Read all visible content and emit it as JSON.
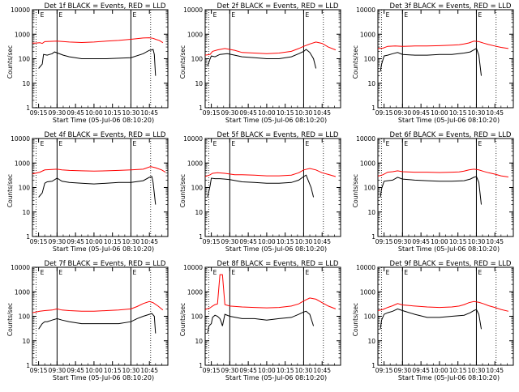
{
  "figure": {
    "xlabel": "Start Time (05-Jul-06 08:10:20)",
    "ylabel": "Counts/sec",
    "xtick_labels": [
      "09:15",
      "09:30",
      "09:45",
      "10:00",
      "10:15",
      "10:30",
      "10:45"
    ],
    "ytick_labels": [
      "1",
      "10",
      "100",
      "1000",
      "10000"
    ],
    "series_colors": {
      "events": "#000000",
      "lld": "#ff0000"
    }
  },
  "chart_data": [
    {
      "type": "line",
      "title": "Det 1f BLACK = Events, RED = LLD",
      "lines_top": "E",
      "xlabel": "Start Time (05-Jul-06 08:10:20)",
      "ylabel": "Counts/sec",
      "x_minutes": [
        65,
        80,
        100,
        120,
        140,
        158,
        165,
        170
      ],
      "y_scale": "log",
      "ylim": [
        1,
        10000
      ],
      "series": [
        {
          "name": "Events",
          "color": "#000000",
          "x": [
            65,
            68,
            69,
            72,
            74,
            76,
            78,
            85,
            90,
            100,
            120,
            140,
            150,
            155,
            157,
            158,
            159,
            160
          ],
          "y": [
            40,
            60,
            150,
            140,
            150,
            160,
            190,
            140,
            120,
            100,
            100,
            110,
            160,
            220,
            230,
            240,
            150,
            20
          ]
        },
        {
          "name": "LLD",
          "color": "#ff0000",
          "x": [
            56,
            62,
            66,
            68,
            70,
            80,
            90,
            100,
            110,
            120,
            130,
            140,
            150,
            155,
            158,
            160,
            163,
            166
          ],
          "y": [
            450,
            430,
            450,
            420,
            500,
            520,
            480,
            460,
            480,
            520,
            560,
            620,
            700,
            720,
            680,
            620,
            560,
            450
          ]
        }
      ]
    },
    {
      "type": "line",
      "title": "Det 2f BLACK = Events, RED = LLD",
      "lines_top": "E",
      "xlabel": "Start Time (05-Jul-06 08:10:20)",
      "ylabel": "Counts/sec",
      "x_minutes": [
        65,
        80,
        100,
        120,
        140,
        158,
        165,
        170
      ],
      "y_scale": "log",
      "ylim": [
        1,
        10000
      ],
      "series": [
        {
          "name": "Events",
          "color": "#000000",
          "x": [
            62,
            64,
            65,
            68,
            72,
            78,
            84,
            90,
            100,
            110,
            120,
            130,
            136,
            140,
            142,
            145,
            148,
            150
          ],
          "y": [
            50,
            100,
            130,
            120,
            150,
            160,
            140,
            120,
            110,
            100,
            100,
            120,
            160,
            200,
            240,
            180,
            100,
            40
          ]
        },
        {
          "name": "LLD",
          "color": "#ff0000",
          "x": [
            56,
            60,
            64,
            66,
            70,
            76,
            84,
            90,
            100,
            110,
            120,
            130,
            136,
            140,
            145,
            150,
            155,
            160,
            166
          ],
          "y": [
            140,
            140,
            150,
            200,
            230,
            260,
            220,
            180,
            170,
            160,
            170,
            200,
            260,
            320,
            400,
            480,
            420,
            300,
            230
          ]
        }
      ]
    },
    {
      "type": "line",
      "title": "Det 3f BLACK = Events, RED = LLD",
      "lines_top": "E",
      "xlabel": "Start Time (05-Jul-06 08:10:20)",
      "ylabel": "Counts/sec",
      "x_minutes": [
        65,
        80,
        100,
        120,
        140,
        158,
        165,
        170
      ],
      "y_scale": "log",
      "ylim": [
        1,
        10000
      ],
      "series": [
        {
          "name": "Events",
          "color": "#000000",
          "x": [
            62,
            63,
            65,
            68,
            72,
            76,
            80,
            90,
            100,
            110,
            120,
            130,
            135,
            138,
            140,
            142,
            144
          ],
          "y": [
            30,
            60,
            130,
            140,
            160,
            180,
            150,
            140,
            140,
            150,
            150,
            170,
            190,
            230,
            260,
            140,
            20
          ]
        },
        {
          "name": "LLD",
          "color": "#ff0000",
          "x": [
            56,
            60,
            64,
            68,
            74,
            80,
            90,
            100,
            110,
            120,
            126,
            130,
            134,
            138,
            142,
            146,
            150,
            155,
            160,
            166
          ],
          "y": [
            260,
            260,
            270,
            320,
            330,
            320,
            330,
            330,
            340,
            360,
            370,
            400,
            440,
            520,
            500,
            430,
            380,
            330,
            290,
            260
          ]
        }
      ]
    },
    {
      "type": "line",
      "title": "Det 4f BLACK = Events, RED = LLD",
      "lines_top": "E",
      "xlabel": "Start Time (05-Jul-06 08:10:20)",
      "ylabel": "Counts/sec",
      "x_minutes": [
        65,
        80,
        100,
        120,
        140,
        158,
        165,
        170
      ],
      "y_scale": "log",
      "ylim": [
        1,
        10000
      ],
      "series": [
        {
          "name": "Events",
          "color": "#000000",
          "x": [
            65,
            68,
            70,
            72,
            76,
            80,
            84,
            90,
            100,
            110,
            120,
            130,
            140,
            150,
            155,
            157,
            158,
            160
          ],
          "y": [
            40,
            60,
            150,
            170,
            180,
            240,
            180,
            160,
            150,
            140,
            150,
            160,
            160,
            190,
            260,
            280,
            160,
            20
          ]
        },
        {
          "name": "LLD",
          "color": "#ff0000",
          "x": [
            56,
            60,
            66,
            70,
            76,
            80,
            84,
            90,
            100,
            110,
            120,
            130,
            140,
            150,
            156,
            160,
            165,
            168
          ],
          "y": [
            350,
            360,
            420,
            520,
            540,
            560,
            520,
            500,
            480,
            470,
            480,
            500,
            520,
            560,
            720,
            640,
            520,
            420
          ]
        }
      ]
    },
    {
      "type": "line",
      "title": "Det 5f BLACK = Events, RED = LLD",
      "lines_top": "E",
      "xlabel": "Start Time (05-Jul-06 08:10:20)",
      "ylabel": "Counts/sec",
      "x_minutes": [
        65,
        80,
        100,
        120,
        140,
        158,
        165,
        170
      ],
      "y_scale": "log",
      "ylim": [
        1,
        10000
      ],
      "series": [
        {
          "name": "Events",
          "color": "#000000",
          "x": [
            62,
            64,
            65,
            68,
            72,
            76,
            80,
            90,
            100,
            110,
            120,
            130,
            136,
            140,
            142,
            144,
            146,
            148
          ],
          "y": [
            40,
            120,
            240,
            230,
            230,
            220,
            210,
            170,
            160,
            150,
            150,
            160,
            200,
            280,
            320,
            180,
            100,
            40
          ]
        },
        {
          "name": "LLD",
          "color": "#ff0000",
          "x": [
            56,
            60,
            64,
            66,
            70,
            76,
            84,
            90,
            100,
            110,
            120,
            130,
            136,
            140,
            145,
            150,
            155,
            160,
            166
          ],
          "y": [
            280,
            280,
            330,
            380,
            400,
            380,
            330,
            330,
            320,
            300,
            300,
            320,
            400,
            520,
            600,
            520,
            400,
            340,
            280
          ]
        }
      ]
    },
    {
      "type": "line",
      "title": "Det 6f BLACK = Events, RED = LLD",
      "lines_top": "E",
      "xlabel": "Start Time (05-Jul-06 08:10:20)",
      "ylabel": "Counts/sec",
      "x_minutes": [
        65,
        80,
        100,
        120,
        140,
        158,
        165,
        170
      ],
      "y_scale": "log",
      "ylim": [
        1,
        10000
      ],
      "series": [
        {
          "name": "Events",
          "color": "#000000",
          "x": [
            62,
            63,
            65,
            68,
            72,
            76,
            80,
            90,
            100,
            110,
            120,
            130,
            135,
            138,
            140,
            142,
            144
          ],
          "y": [
            40,
            90,
            180,
            190,
            200,
            260,
            220,
            200,
            190,
            180,
            180,
            190,
            220,
            260,
            280,
            160,
            20
          ]
        },
        {
          "name": "LLD",
          "color": "#ff0000",
          "x": [
            56,
            60,
            64,
            68,
            72,
            76,
            80,
            90,
            100,
            110,
            120,
            126,
            130,
            134,
            138,
            142,
            146,
            150,
            155,
            160,
            166
          ],
          "y": [
            280,
            290,
            330,
            420,
            440,
            480,
            440,
            420,
            420,
            410,
            420,
            430,
            470,
            520,
            560,
            520,
            450,
            400,
            350,
            300,
            270
          ]
        }
      ]
    },
    {
      "type": "line",
      "title": "Det 7f BLACK = Events, RED = LLD",
      "lines_top": "E",
      "xlabel": "Start Time (05-Jul-06 08:10:20)",
      "ylabel": "Counts/sec",
      "x_minutes": [
        65,
        80,
        100,
        120,
        140,
        158,
        165,
        170
      ],
      "y_scale": "log",
      "ylim": [
        1,
        10000
      ],
      "series": [
        {
          "name": "Events",
          "color": "#000000",
          "x": [
            65,
            68,
            70,
            72,
            76,
            80,
            84,
            90,
            100,
            110,
            120,
            130,
            140,
            145,
            150,
            155,
            157,
            159,
            160
          ],
          "y": [
            30,
            50,
            60,
            60,
            70,
            80,
            70,
            60,
            50,
            50,
            50,
            50,
            60,
            80,
            100,
            120,
            130,
            100,
            20
          ]
        },
        {
          "name": "LLD",
          "color": "#ff0000",
          "x": [
            56,
            60,
            66,
            70,
            76,
            80,
            84,
            90,
            100,
            110,
            120,
            130,
            140,
            145,
            150,
            155,
            158,
            162,
            166
          ],
          "y": [
            130,
            140,
            160,
            170,
            180,
            200,
            180,
            170,
            160,
            160,
            170,
            180,
            200,
            250,
            330,
            400,
            360,
            260,
            180
          ]
        }
      ]
    },
    {
      "type": "line",
      "title": "Det 8f BLACK = Events, RED = LLD",
      "lines_top": "E",
      "xlabel": "Start Time (05-Jul-06 08:10:20)",
      "ylabel": "Counts/sec",
      "x_minutes": [
        65,
        80,
        100,
        120,
        140,
        158,
        165,
        170
      ],
      "y_scale": "log",
      "ylim": [
        1,
        10000
      ],
      "series": [
        {
          "name": "Events",
          "color": "#000000",
          "x": [
            62,
            63,
            65,
            66,
            68,
            70,
            72,
            73,
            74,
            76,
            80,
            90,
            100,
            110,
            120,
            130,
            136,
            140,
            142,
            145,
            148
          ],
          "y": [
            20,
            40,
            50,
            90,
            110,
            100,
            80,
            60,
            40,
            120,
            100,
            80,
            80,
            70,
            80,
            90,
            120,
            150,
            160,
            120,
            40
          ]
        },
        {
          "name": "LLD",
          "color": "#ff0000",
          "x": [
            56,
            60,
            64,
            66,
            68,
            70,
            72,
            74,
            76,
            80,
            90,
            100,
            110,
            120,
            130,
            136,
            140,
            145,
            150,
            155,
            160,
            166
          ],
          "y": [
            200,
            190,
            220,
            260,
            300,
            320,
            5000,
            5000,
            300,
            260,
            240,
            230,
            220,
            230,
            260,
            320,
            420,
            560,
            500,
            360,
            260,
            200
          ]
        }
      ]
    },
    {
      "type": "line",
      "title": "Det 9f BLACK = Events, RED = LLD",
      "lines_top": "E",
      "xlabel": "Start Time (05-Jul-06 08:10:20)",
      "ylabel": "Counts/sec",
      "x_minutes": [
        65,
        80,
        100,
        120,
        140,
        158,
        165,
        170
      ],
      "y_scale": "log",
      "ylim": [
        1,
        10000
      ],
      "series": [
        {
          "name": "Events",
          "color": "#000000",
          "x": [
            62,
            63,
            65,
            68,
            72,
            76,
            80,
            90,
            100,
            110,
            120,
            130,
            135,
            138,
            140,
            142,
            144
          ],
          "y": [
            30,
            70,
            120,
            140,
            160,
            200,
            170,
            120,
            90,
            90,
            100,
            110,
            140,
            170,
            190,
            120,
            30
          ]
        },
        {
          "name": "LLD",
          "color": "#ff0000",
          "x": [
            56,
            60,
            64,
            68,
            72,
            76,
            80,
            90,
            100,
            110,
            120,
            126,
            130,
            134,
            138,
            142,
            146,
            150,
            155,
            160,
            166
          ],
          "y": [
            160,
            170,
            190,
            230,
            270,
            330,
            290,
            260,
            240,
            230,
            240,
            260,
            300,
            360,
            400,
            370,
            320,
            270,
            230,
            190,
            160
          ]
        }
      ]
    }
  ]
}
